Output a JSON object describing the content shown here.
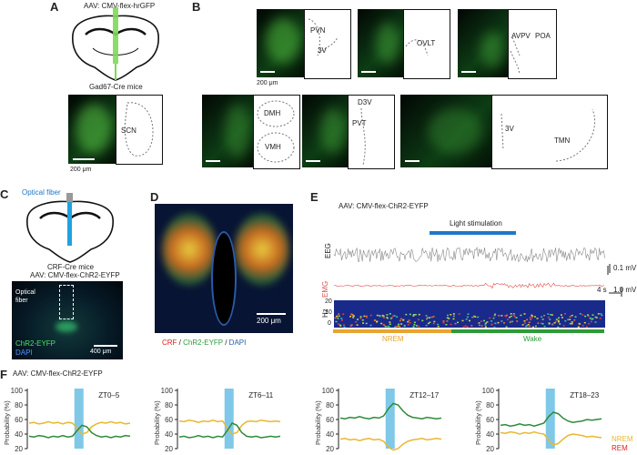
{
  "panels": {
    "A": {
      "label": "A",
      "virus": "AAV: CMV-flex-hrGFP",
      "mouse": "Gad67-Cre mice",
      "region": "SCN",
      "scale": "200 μm"
    },
    "B": {
      "label": "B",
      "scale": "200 μm",
      "regions": {
        "pvn": "PVN",
        "v3": "3V",
        "ovlt": "OVLT",
        "avpv": "AVPV",
        "poa": "POA",
        "dmh": "DMH",
        "vmh": "VMH",
        "d3v": "D3V",
        "pvt": "PVT",
        "v3b": "3V",
        "tmn": "TMN"
      }
    },
    "C": {
      "label": "C",
      "fiber": "Optical fiber",
      "mouse": "CRF-Cre mice",
      "virus": "AAV: CMV-flex-ChR2-EYFP",
      "fiber_inset": "Optical\nfiber",
      "chr2": "ChR2-EYFP",
      "dapi": "DAPI",
      "scale": "400 μm"
    },
    "D": {
      "label": "D",
      "crf": "CRF",
      "slash1": " / ",
      "chr2": "ChR2-EYFP",
      "slash2": " / ",
      "dapi": "DAPI",
      "scale": "200 μm"
    },
    "E": {
      "label": "E",
      "virus": "AAV: CMV-flex-ChR2-EYFP",
      "light": "Light stimulation",
      "eeg": "EEG",
      "emg": "EMG",
      "hz": "Hz",
      "eeg_scale": "0.1 mV",
      "emg_scale": "1.0 mV",
      "time_scale": "4 s",
      "hz_ticks": [
        "20",
        "10",
        "0"
      ],
      "states": [
        "NREM",
        "Wake"
      ]
    },
    "F": {
      "label": "F",
      "virus": "AAV: CMV-flex-ChR2-EYFP",
      "ylabel": "Probability (%)",
      "yticks": [
        "100",
        "80",
        "60",
        "40",
        "20"
      ],
      "subplots": [
        "ZT0–5",
        "ZT6–11",
        "ZT12–17",
        "ZT18–23"
      ],
      "legend": {
        "nrem": "NREM",
        "rem": "REM"
      }
    }
  },
  "colors": {
    "nrem": "#e8b832",
    "wake": "#2e8b3a",
    "rem": "#e02020",
    "light": "#7fc8e8",
    "stim_bar": "#1f78c8",
    "emg": "#e05050"
  },
  "chart_data": [
    {
      "type": "line",
      "title": "ZT0–5",
      "ylabel": "Probability (%)",
      "ylim": [
        20,
        100
      ],
      "series": [
        {
          "name": "NREM",
          "values": [
            55,
            56,
            54,
            55,
            57,
            55,
            56,
            54,
            56,
            55,
            48,
            40,
            42,
            50,
            54,
            56,
            55,
            57,
            55,
            56,
            54,
            55
          ]
        },
        {
          "name": "Wake",
          "values": [
            37,
            36,
            38,
            37,
            35,
            37,
            36,
            38,
            36,
            37,
            45,
            52,
            50,
            42,
            38,
            36,
            37,
            35,
            37,
            36,
            38,
            37
          ]
        }
      ]
    },
    {
      "title": "ZT6–11",
      "type": "line",
      "ylabel": "Probability (%)",
      "ylim": [
        20,
        100
      ],
      "series": [
        {
          "name": "NREM",
          "values": [
            58,
            57,
            59,
            58,
            56,
            58,
            57,
            59,
            57,
            58,
            48,
            40,
            42,
            52,
            57,
            58,
            57,
            59,
            58,
            57,
            58,
            57
          ]
        },
        {
          "name": "Wake",
          "values": [
            36,
            37,
            35,
            36,
            38,
            36,
            37,
            35,
            37,
            36,
            45,
            55,
            52,
            42,
            37,
            36,
            37,
            35,
            36,
            37,
            36,
            37
          ]
        }
      ]
    },
    {
      "title": "ZT12–17",
      "type": "line",
      "ylabel": "Probability (%)",
      "ylim": [
        20,
        100
      ],
      "series": [
        {
          "name": "Wake",
          "values": [
            62,
            61,
            63,
            62,
            64,
            62,
            61,
            63,
            62,
            65,
            75,
            82,
            80,
            72,
            66,
            63,
            62,
            61,
            63,
            62,
            61,
            62
          ]
        },
        {
          "name": "NREM",
          "values": [
            33,
            34,
            32,
            33,
            31,
            33,
            34,
            32,
            33,
            30,
            22,
            18,
            20,
            26,
            30,
            32,
            33,
            34,
            32,
            33,
            34,
            33
          ]
        }
      ]
    },
    {
      "title": "ZT18–23",
      "type": "line",
      "ylabel": "Probability (%)",
      "ylim": [
        20,
        100
      ],
      "series": [
        {
          "name": "Wake",
          "values": [
            52,
            53,
            51,
            52,
            54,
            52,
            53,
            51,
            53,
            55,
            64,
            70,
            68,
            62,
            58,
            56,
            57,
            58,
            60,
            59,
            60,
            61
          ]
        },
        {
          "name": "NREM",
          "values": [
            42,
            41,
            43,
            42,
            40,
            42,
            41,
            43,
            41,
            40,
            32,
            25,
            27,
            33,
            38,
            40,
            39,
            38,
            36,
            37,
            36,
            35
          ]
        }
      ]
    }
  ]
}
